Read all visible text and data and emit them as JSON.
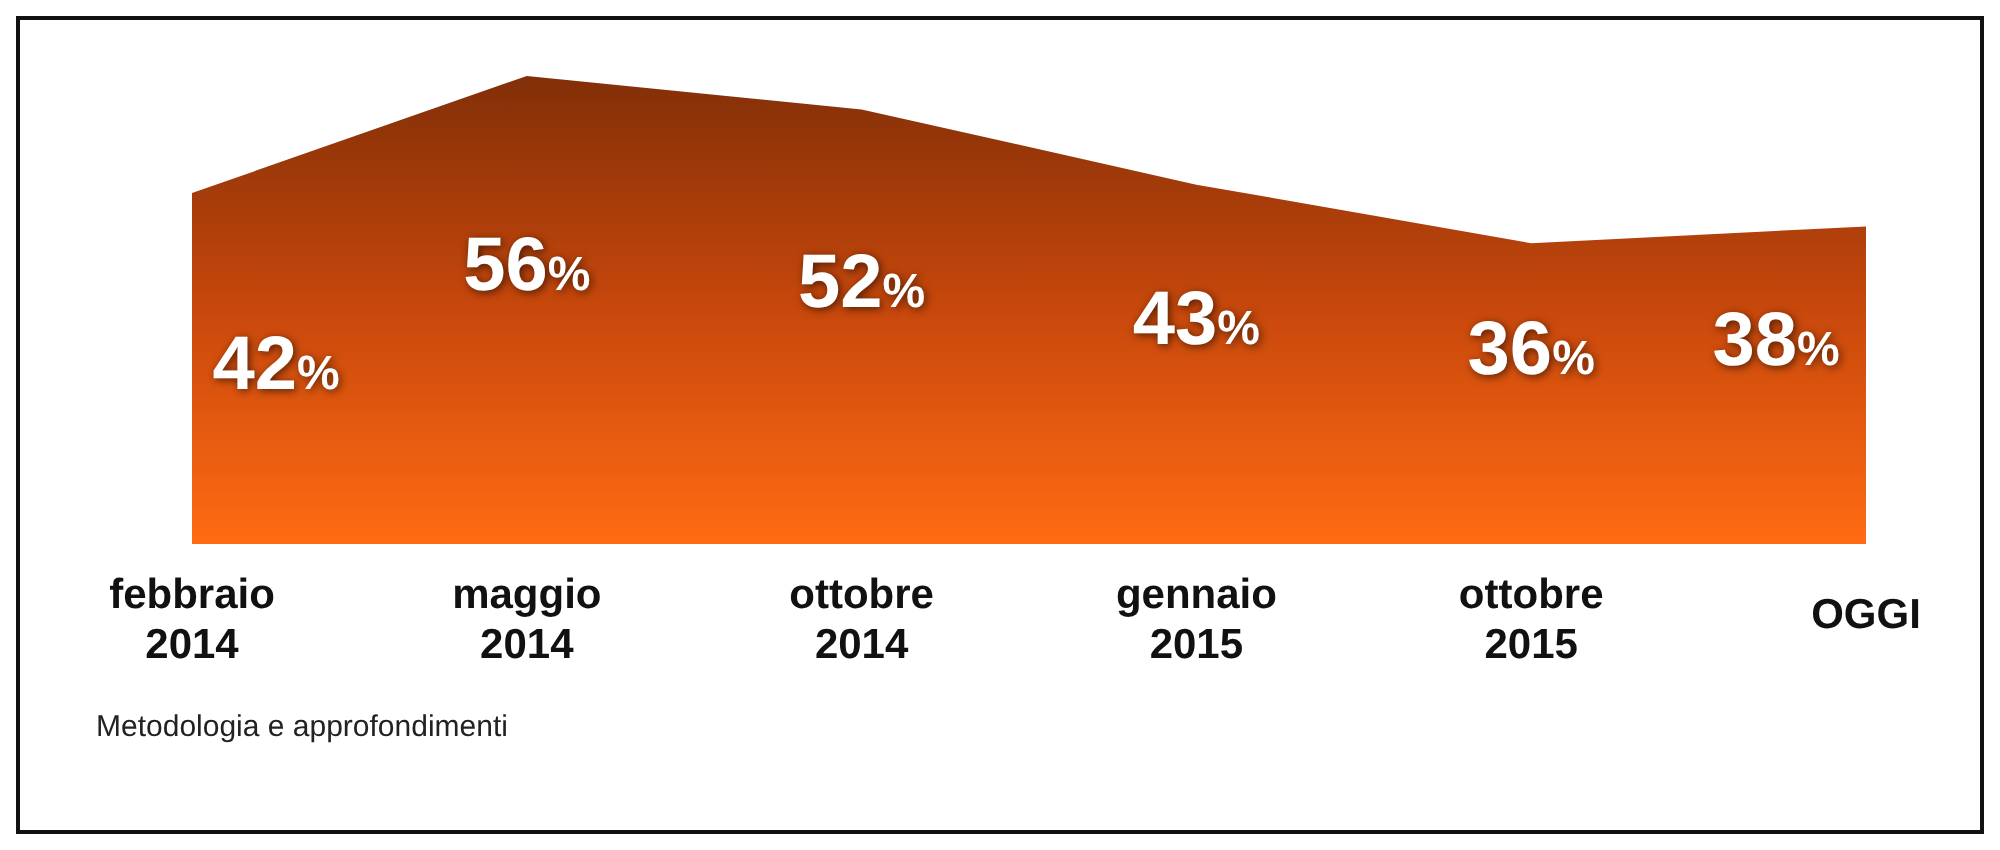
{
  "chart_data": {
    "type": "area",
    "categories": [
      "febbraio 2014",
      "maggio 2014",
      "ottobre 2014",
      "gennaio 2015",
      "ottobre 2015",
      "OGGI"
    ],
    "values": [
      42,
      56,
      52,
      43,
      36,
      38
    ],
    "value_labels": [
      "42%",
      "56%",
      "52%",
      "43%",
      "36%",
      "38%"
    ],
    "color": "#c8480c",
    "annotations": [
      "Metodologia e approfondimenti"
    ]
  }
}
